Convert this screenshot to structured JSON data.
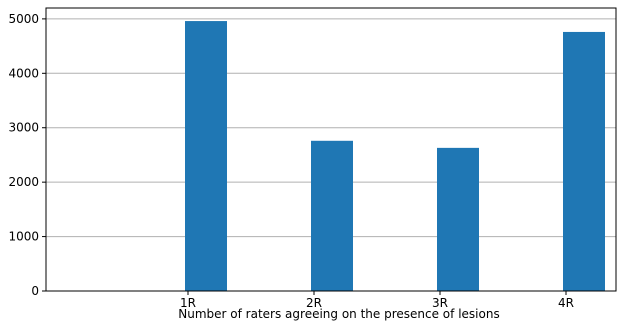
{
  "chart_data": {
    "type": "bar",
    "categories": [
      "1R",
      "2R",
      "3R",
      "4R"
    ],
    "values": [
      4960,
      2760,
      2630,
      4760
    ],
    "title": "",
    "xlabel": "Number of raters agreeing on the presence of lesions",
    "ylabel": "",
    "ylim": [
      0,
      5200
    ],
    "yticks": [
      0,
      1000,
      2000,
      3000,
      4000,
      5000
    ],
    "grid": "horizontal",
    "bar_color": "#1f77b4",
    "grid_color": "#b0b0b0"
  }
}
